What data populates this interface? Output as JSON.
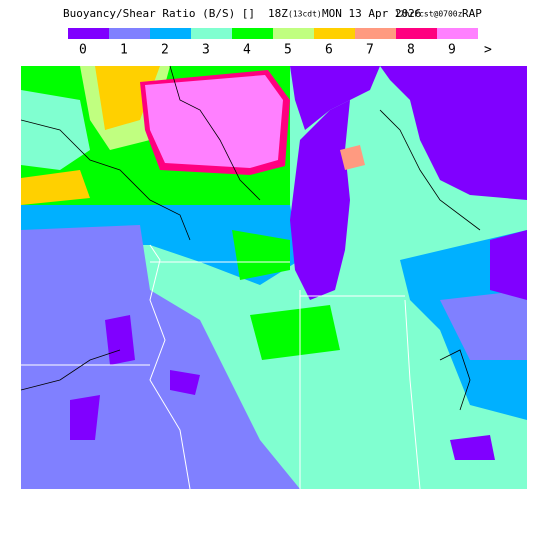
{
  "header": {
    "title": "Buoyancy/Shear Ratio (B/S) []",
    "valid": "18Z",
    "local": "(13cdt)",
    "date": "MON 13 Apr 2026",
    "forecast": "12hrFcst@0700z",
    "model": "RAP"
  },
  "legend": [
    {
      "label": "0",
      "color": "#8000ff"
    },
    {
      "label": "1",
      "color": "#8080ff"
    },
    {
      "label": "2",
      "color": "#00b0ff"
    },
    {
      "label": "3",
      "color": "#80ffd0"
    },
    {
      "label": "4",
      "color": "#00ff00"
    },
    {
      "label": "5",
      "color": "#c0ff80"
    },
    {
      "label": "6",
      "color": "#ffd000"
    },
    {
      "label": "7",
      "color": "#ff9a80"
    },
    {
      "label": "8",
      "color": "#ff0080"
    },
    {
      "label": "9",
      "color": "#ff80ff"
    }
  ],
  "legend_overflow": ">"
}
